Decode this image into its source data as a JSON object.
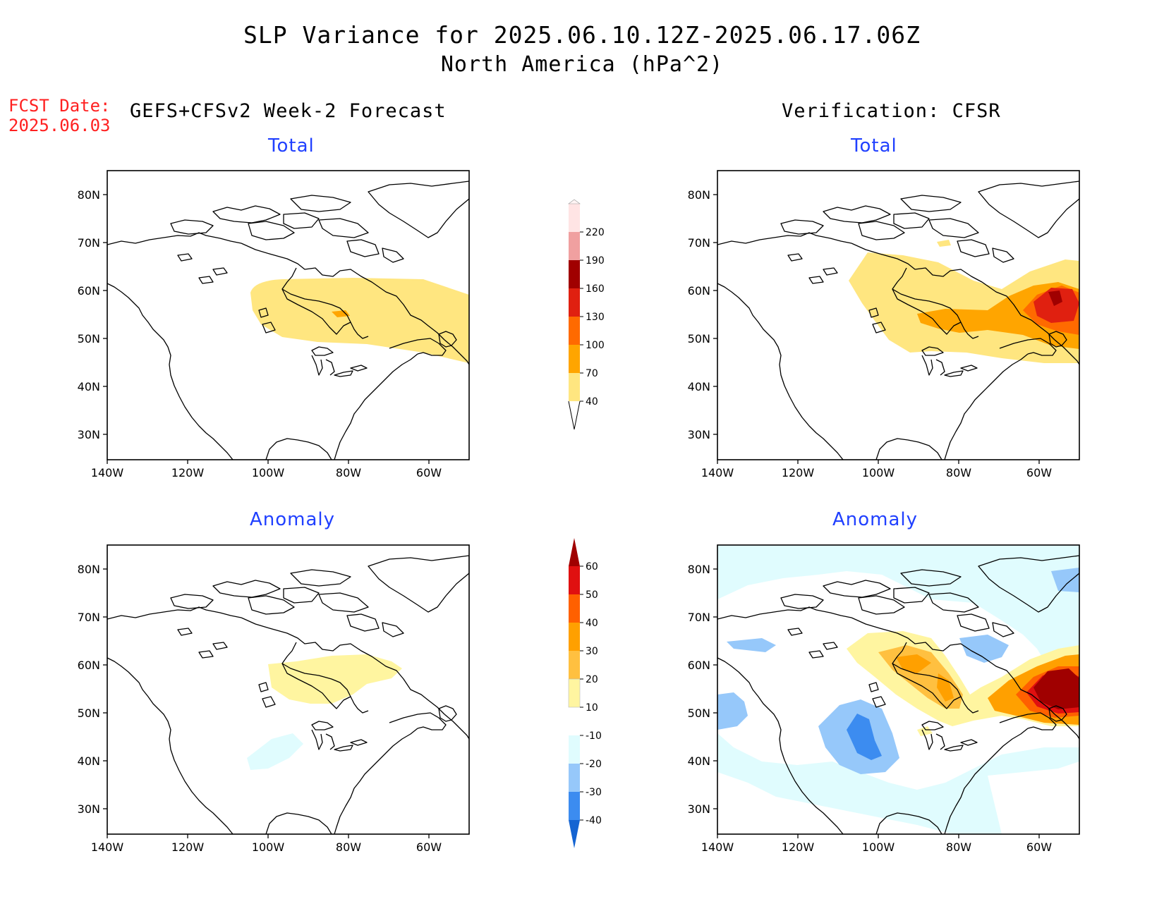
{
  "title": {
    "line1": "SLP Variance for 2025.06.10.12Z-2025.06.17.06Z",
    "line2": "North America (hPa^2)"
  },
  "fcst_date": {
    "label": "FCST Date:",
    "value": "2025.06.03"
  },
  "columns": {
    "left": "GEFS+CFSv2 Week-2 Forecast",
    "right": "Verification: CFSR"
  },
  "panels": {
    "top_left": "Total",
    "top_right": "Total",
    "bottom_left": "Anomaly",
    "bottom_right": "Anomaly"
  },
  "axes": {
    "lat_labels": [
      "80N",
      "70N",
      "60N",
      "50N",
      "40N",
      "30N"
    ],
    "lon_labels": [
      "140W",
      "120W",
      "100W",
      "80W",
      "60W"
    ]
  },
  "colorbars": {
    "total": {
      "levels": [
        "40",
        "70",
        "100",
        "130",
        "160",
        "190",
        "220"
      ],
      "colors": [
        "#ffe680",
        "#ffa500",
        "#ff6a00",
        "#e02010",
        "#a00000",
        "#f0a0a0",
        "#ffe4e4"
      ]
    },
    "anomaly": {
      "levels": [
        "-40",
        "-30",
        "-20",
        "-10",
        "10",
        "20",
        "30",
        "40",
        "50",
        "60"
      ],
      "colors": [
        "#1464d2",
        "#3c8cf0",
        "#96c8fa",
        "#e0fcfe",
        "#ffffff",
        "#fff5a0",
        "#ffc040",
        "#ffa000",
        "#ff6000",
        "#e01010",
        "#a00000"
      ]
    }
  }
}
